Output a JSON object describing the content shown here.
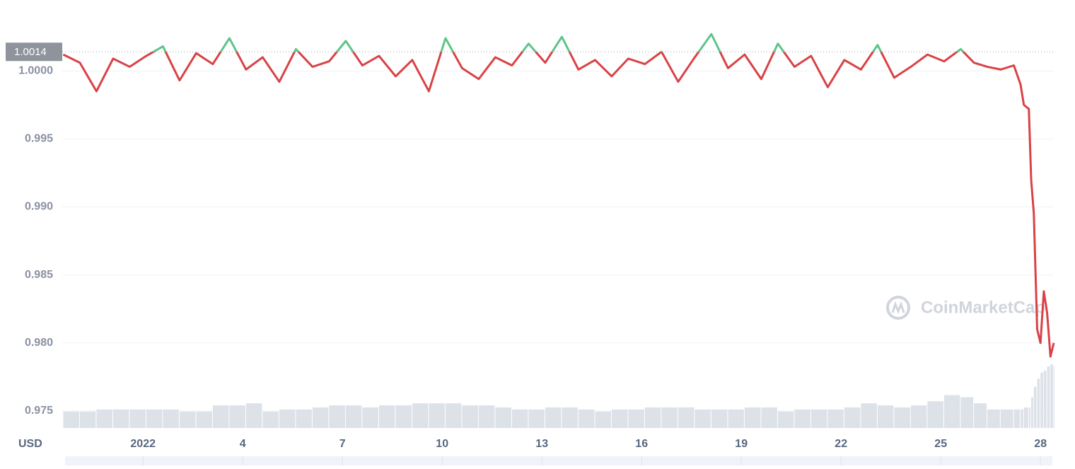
{
  "chart_data": {
    "type": "line",
    "currency": "USD",
    "watermark": "CoinMarketCap",
    "reference": 1.0014,
    "x": [
      -2.4,
      -1.9,
      -1.4,
      -0.9,
      -0.4,
      0.1,
      0.6,
      1.1,
      1.6,
      2.1,
      2.6,
      3.1,
      3.6,
      4.1,
      4.6,
      5.1,
      5.6,
      6.1,
      6.6,
      7.1,
      7.6,
      8.1,
      8.6,
      9.1,
      9.6,
      10.1,
      10.6,
      11.1,
      11.6,
      12.1,
      12.6,
      13.1,
      13.6,
      14.1,
      14.6,
      15.1,
      15.6,
      16.1,
      16.6,
      17.1,
      17.6,
      18.1,
      18.6,
      19.1,
      19.6,
      20.1,
      20.6,
      21.1,
      21.6,
      22.1,
      22.6,
      23.1,
      23.6,
      24.1,
      24.6,
      25.0,
      25.4,
      25.8,
      26.2,
      26.4,
      26.5,
      26.65,
      26.72,
      26.8,
      26.9,
      27.0,
      27.1,
      27.2,
      27.3,
      27.4
    ],
    "series": [
      {
        "color": "#d94246",
        "up_color": "#5ec48a",
        "values": [
          1.0012,
          1.0006,
          0.9985,
          1.0009,
          1.0003,
          1.0011,
          1.0018,
          0.9993,
          1.0013,
          1.0005,
          1.0024,
          1.0001,
          1.001,
          0.9992,
          1.0016,
          1.0003,
          1.0007,
          1.0022,
          1.0004,
          1.0011,
          0.9996,
          1.0008,
          0.9985,
          1.0024,
          1.0002,
          0.9994,
          1.001,
          1.0004,
          1.002,
          1.0006,
          1.0025,
          1.0001,
          1.0008,
          0.9996,
          1.0009,
          1.0005,
          1.0014,
          0.9992,
          1.001,
          1.0027,
          1.0002,
          1.0012,
          0.9994,
          1.002,
          1.0003,
          1.0011,
          0.9988,
          1.0008,
          1.0001,
          1.0019,
          0.9995,
          1.0003,
          1.0012,
          1.0007,
          1.0016,
          1.0006,
          1.0003,
          1.0001,
          1.0004,
          0.999,
          0.9975,
          0.9972,
          0.992,
          0.9895,
          0.981,
          0.98,
          0.9838,
          0.9822,
          0.979,
          0.98
        ]
      }
    ],
    "volume": [
      8,
      8,
      9,
      9,
      9,
      9,
      9,
      8,
      8,
      11,
      11,
      12,
      8,
      9,
      9,
      10,
      11,
      11,
      10,
      11,
      11,
      12,
      12,
      12,
      11,
      11,
      10,
      9,
      9,
      10,
      10,
      9,
      8,
      9,
      9,
      10,
      10,
      10,
      9,
      9,
      9,
      10,
      10,
      8,
      9,
      9,
      9,
      10,
      12,
      11,
      10,
      11,
      13,
      16,
      15,
      12,
      9,
      9,
      9,
      9,
      10,
      10,
      15,
      20,
      24,
      27,
      28,
      30,
      31,
      30
    ],
    "xlim": [
      -2.43,
      27.4
    ],
    "xticks": [
      {
        "value": 0,
        "label": "2022"
      },
      3,
      6,
      9,
      12,
      15,
      18,
      21,
      24,
      27
    ],
    "xtick_labels": [
      "2022",
      "4",
      "7",
      "10",
      "13",
      "16",
      "19",
      "22",
      "25",
      "28"
    ],
    "ylim": [
      0.97375,
      1.00495
    ],
    "yticks": [
      0.975,
      {
        "value": 0.98,
        "label": "0.980"
      },
      0.985,
      {
        "value": 0.99,
        "label": "0.990"
      },
      0.995,
      {
        "value": 1,
        "label": "1.0000"
      }
    ],
    "grid": true
  }
}
